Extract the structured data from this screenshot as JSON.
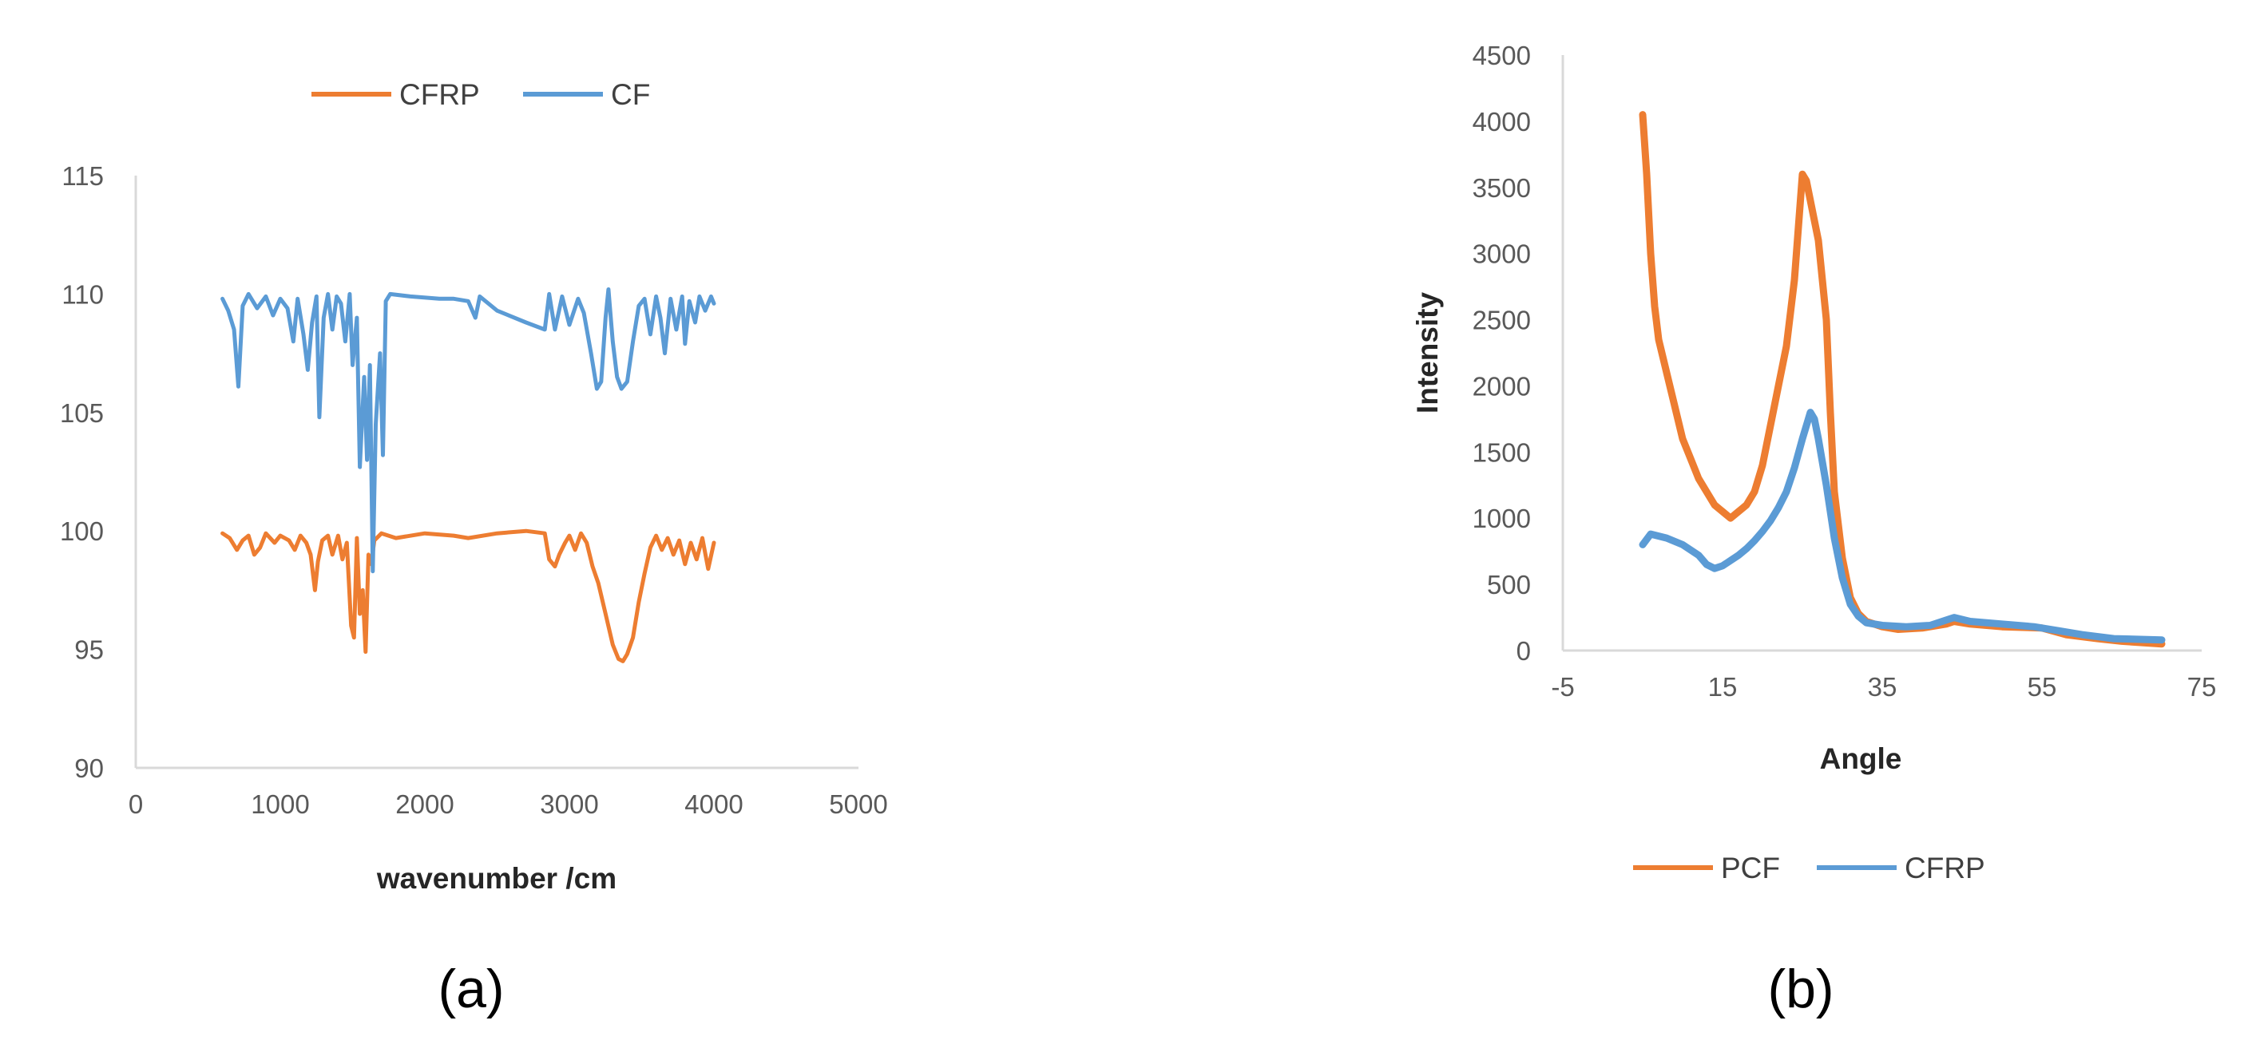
{
  "figure": {
    "panel_labels": [
      "(a)",
      "(b)"
    ]
  },
  "colors": {
    "orange": "#ED7D31",
    "blue": "#5B9BD5",
    "axis": "#D9D9D9"
  },
  "chart_data": [
    {
      "id": "a",
      "type": "line",
      "title": "",
      "xlabel": "wavenumber /cm",
      "ylabel": "",
      "xlim": [
        0,
        5000
      ],
      "ylim": [
        90,
        115
      ],
      "xticks": [
        "0",
        "1000",
        "2000",
        "3000",
        "4000",
        "5000"
      ],
      "yticks": [
        "90",
        "95",
        "100",
        "105",
        "110",
        "115"
      ],
      "grid": false,
      "legend": {
        "placement": "top",
        "entries": [
          "CFRP",
          "CF"
        ]
      },
      "series": [
        {
          "name": "CFRP",
          "color": "#ED7D31",
          "points": [
            [
              600,
              99.9
            ],
            [
              650,
              99.7
            ],
            [
              700,
              99.2
            ],
            [
              740,
              99.6
            ],
            [
              780,
              99.8
            ],
            [
              820,
              99.0
            ],
            [
              860,
              99.3
            ],
            [
              900,
              99.9
            ],
            [
              960,
              99.5
            ],
            [
              1000,
              99.8
            ],
            [
              1060,
              99.6
            ],
            [
              1100,
              99.2
            ],
            [
              1140,
              99.8
            ],
            [
              1180,
              99.5
            ],
            [
              1210,
              99.0
            ],
            [
              1240,
              97.5
            ],
            [
              1260,
              98.7
            ],
            [
              1290,
              99.6
            ],
            [
              1330,
              99.8
            ],
            [
              1360,
              99.0
            ],
            [
              1400,
              99.8
            ],
            [
              1430,
              98.8
            ],
            [
              1460,
              99.5
            ],
            [
              1490,
              96.0
            ],
            [
              1510,
              95.5
            ],
            [
              1530,
              99.7
            ],
            [
              1550,
              96.5
            ],
            [
              1570,
              97.5
            ],
            [
              1590,
              94.9
            ],
            [
              1610,
              99.0
            ],
            [
              1630,
              98.6
            ],
            [
              1650,
              99.6
            ],
            [
              1700,
              99.9
            ],
            [
              1800,
              99.7
            ],
            [
              2000,
              99.9
            ],
            [
              2200,
              99.8
            ],
            [
              2300,
              99.7
            ],
            [
              2500,
              99.9
            ],
            [
              2700,
              100.0
            ],
            [
              2830,
              99.9
            ],
            [
              2860,
              98.8
            ],
            [
              2900,
              98.5
            ],
            [
              2930,
              99.0
            ],
            [
              2970,
              99.5
            ],
            [
              3000,
              99.8
            ],
            [
              3040,
              99.2
            ],
            [
              3080,
              99.9
            ],
            [
              3120,
              99.5
            ],
            [
              3160,
              98.5
            ],
            [
              3200,
              97.8
            ],
            [
              3250,
              96.5
            ],
            [
              3300,
              95.2
            ],
            [
              3340,
              94.6
            ],
            [
              3370,
              94.5
            ],
            [
              3400,
              94.8
            ],
            [
              3440,
              95.5
            ],
            [
              3480,
              97.0
            ],
            [
              3520,
              98.2
            ],
            [
              3560,
              99.3
            ],
            [
              3600,
              99.8
            ],
            [
              3640,
              99.2
            ],
            [
              3680,
              99.7
            ],
            [
              3720,
              99.0
            ],
            [
              3760,
              99.6
            ],
            [
              3800,
              98.6
            ],
            [
              3840,
              99.5
            ],
            [
              3880,
              98.8
            ],
            [
              3920,
              99.7
            ],
            [
              3960,
              98.4
            ],
            [
              4000,
              99.5
            ]
          ]
        },
        {
          "name": "CF",
          "color": "#5B9BD5",
          "points": [
            [
              600,
              109.8
            ],
            [
              640,
              109.3
            ],
            [
              680,
              108.5
            ],
            [
              710,
              106.1
            ],
            [
              740,
              109.5
            ],
            [
              780,
              110.0
            ],
            [
              840,
              109.4
            ],
            [
              900,
              109.9
            ],
            [
              950,
              109.1
            ],
            [
              1000,
              109.8
            ],
            [
              1050,
              109.4
            ],
            [
              1090,
              108.0
            ],
            [
              1120,
              109.8
            ],
            [
              1160,
              108.3
            ],
            [
              1190,
              106.8
            ],
            [
              1220,
              108.8
            ],
            [
              1250,
              109.9
            ],
            [
              1270,
              104.8
            ],
            [
              1300,
              109.0
            ],
            [
              1330,
              110.0
            ],
            [
              1360,
              108.5
            ],
            [
              1390,
              109.9
            ],
            [
              1420,
              109.6
            ],
            [
              1450,
              108.0
            ],
            [
              1480,
              110.0
            ],
            [
              1500,
              107.0
            ],
            [
              1530,
              109.0
            ],
            [
              1550,
              102.7
            ],
            [
              1580,
              106.5
            ],
            [
              1600,
              103.0
            ],
            [
              1620,
              107.0
            ],
            [
              1640,
              98.3
            ],
            [
              1660,
              104.5
            ],
            [
              1690,
              107.5
            ],
            [
              1710,
              103.2
            ],
            [
              1730,
              109.7
            ],
            [
              1760,
              110.0
            ],
            [
              1900,
              109.9
            ],
            [
              2100,
              109.8
            ],
            [
              2200,
              109.8
            ],
            [
              2300,
              109.7
            ],
            [
              2350,
              109.0
            ],
            [
              2380,
              109.9
            ],
            [
              2500,
              109.3
            ],
            [
              2700,
              108.8
            ],
            [
              2830,
              108.5
            ],
            [
              2860,
              110.0
            ],
            [
              2900,
              108.5
            ],
            [
              2950,
              109.9
            ],
            [
              3000,
              108.7
            ],
            [
              3060,
              109.8
            ],
            [
              3100,
              109.2
            ],
            [
              3150,
              107.5
            ],
            [
              3190,
              106.0
            ],
            [
              3220,
              106.3
            ],
            [
              3250,
              109.0
            ],
            [
              3270,
              110.2
            ],
            [
              3300,
              108.0
            ],
            [
              3330,
              106.5
            ],
            [
              3360,
              106.0
            ],
            [
              3400,
              106.3
            ],
            [
              3440,
              108.0
            ],
            [
              3480,
              109.5
            ],
            [
              3520,
              109.8
            ],
            [
              3560,
              108.3
            ],
            [
              3600,
              109.9
            ],
            [
              3630,
              109.0
            ],
            [
              3660,
              107.5
            ],
            [
              3700,
              109.8
            ],
            [
              3740,
              108.5
            ],
            [
              3780,
              109.9
            ],
            [
              3800,
              107.9
            ],
            [
              3830,
              109.7
            ],
            [
              3870,
              108.8
            ],
            [
              3900,
              109.9
            ],
            [
              3940,
              109.3
            ],
            [
              3980,
              109.9
            ],
            [
              4000,
              109.6
            ]
          ]
        }
      ]
    },
    {
      "id": "b",
      "type": "line",
      "title": "",
      "xlabel": "Angle",
      "ylabel": "Intensity",
      "xlim": [
        -5,
        75
      ],
      "ylim": [
        0,
        4500
      ],
      "xticks": [
        "-5",
        "15",
        "35",
        "55",
        "75"
      ],
      "yticks": [
        "0",
        "500",
        "1000",
        "1500",
        "2000",
        "2500",
        "3000",
        "3500",
        "4000",
        "4500"
      ],
      "grid": false,
      "legend": {
        "placement": "bottom",
        "entries": [
          "PCF",
          "CFRP"
        ]
      },
      "series": [
        {
          "name": "PCF",
          "color": "#ED7D31",
          "points": [
            [
              5,
              4050
            ],
            [
              5.5,
              3600
            ],
            [
              6,
              3000
            ],
            [
              6.5,
              2600
            ],
            [
              7,
              2350
            ],
            [
              8,
              2100
            ],
            [
              9,
              1850
            ],
            [
              10,
              1600
            ],
            [
              11,
              1450
            ],
            [
              12,
              1300
            ],
            [
              13,
              1200
            ],
            [
              14,
              1100
            ],
            [
              15,
              1050
            ],
            [
              16,
              1000
            ],
            [
              17,
              1050
            ],
            [
              18,
              1100
            ],
            [
              19,
              1200
            ],
            [
              20,
              1400
            ],
            [
              21,
              1700
            ],
            [
              22,
              2000
            ],
            [
              23,
              2300
            ],
            [
              24,
              2800
            ],
            [
              24.5,
              3200
            ],
            [
              25,
              3600
            ],
            [
              25.5,
              3550
            ],
            [
              26,
              3400
            ],
            [
              27,
              3100
            ],
            [
              28,
              2500
            ],
            [
              28.5,
              1800
            ],
            [
              29,
              1200
            ],
            [
              30,
              700
            ],
            [
              31,
              400
            ],
            [
              32,
              280
            ],
            [
              33,
              220
            ],
            [
              35,
              180
            ],
            [
              37,
              160
            ],
            [
              40,
              170
            ],
            [
              43,
              200
            ],
            [
              44,
              220
            ],
            [
              46,
              200
            ],
            [
              50,
              180
            ],
            [
              55,
              170
            ],
            [
              58,
              120
            ],
            [
              62,
              90
            ],
            [
              65,
              70
            ],
            [
              70,
              50
            ]
          ]
        },
        {
          "name": "CFRP",
          "color": "#5B9BD5",
          "points": [
            [
              5,
              800
            ],
            [
              6,
              880
            ],
            [
              8,
              850
            ],
            [
              10,
              800
            ],
            [
              12,
              720
            ],
            [
              13,
              650
            ],
            [
              14,
              620
            ],
            [
              15,
              640
            ],
            [
              16,
              680
            ],
            [
              17,
              720
            ],
            [
              18,
              770
            ],
            [
              19,
              830
            ],
            [
              20,
              900
            ],
            [
              21,
              980
            ],
            [
              22,
              1080
            ],
            [
              23,
              1200
            ],
            [
              24,
              1380
            ],
            [
              25,
              1600
            ],
            [
              25.5,
              1700
            ],
            [
              26,
              1800
            ],
            [
              26.5,
              1750
            ],
            [
              27,
              1600
            ],
            [
              28,
              1250
            ],
            [
              29,
              850
            ],
            [
              30,
              550
            ],
            [
              31,
              350
            ],
            [
              32,
              260
            ],
            [
              33,
              210
            ],
            [
              35,
              190
            ],
            [
              38,
              180
            ],
            [
              41,
              190
            ],
            [
              43,
              230
            ],
            [
              44,
              250
            ],
            [
              46,
              220
            ],
            [
              50,
              200
            ],
            [
              54,
              180
            ],
            [
              57,
              150
            ],
            [
              60,
              120
            ],
            [
              64,
              90
            ],
            [
              70,
              80
            ]
          ]
        }
      ]
    }
  ]
}
